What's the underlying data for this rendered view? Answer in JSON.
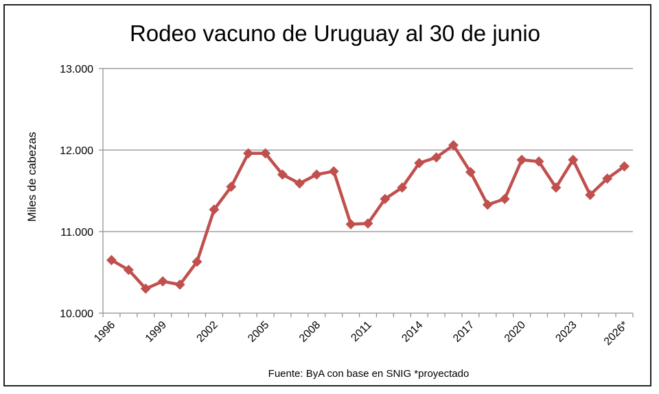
{
  "chart_data": {
    "type": "line",
    "title": "Rodeo vacuno de Uruguay al 30 de junio",
    "ylabel": "Miles de cabezas",
    "xlabel": "",
    "source": "Fuente: ByA con base en SNIG *proyectado",
    "ylim": [
      10000,
      13000
    ],
    "yticks": [
      "10.000",
      "11.000",
      "12.000",
      "13.000"
    ],
    "ytick_values": [
      10000,
      11000,
      12000,
      13000
    ],
    "xtick_labels": [
      "1996",
      "1999",
      "2002",
      "2005",
      "2008",
      "2011",
      "2014",
      "2017",
      "2020",
      "2023",
      "2026*"
    ],
    "x": [
      "1996",
      "1997",
      "1998",
      "1999",
      "2000",
      "2001",
      "2002",
      "2003",
      "2004",
      "2005",
      "2006",
      "2007",
      "2008",
      "2009",
      "2010",
      "2011",
      "2012",
      "2013",
      "2014",
      "2015",
      "2016",
      "2017",
      "2018",
      "2019",
      "2020",
      "2021",
      "2022",
      "2023",
      "2024",
      "2025",
      "2026*"
    ],
    "series": [
      {
        "values": [
          10650,
          10530,
          10300,
          10390,
          10350,
          10630,
          11270,
          11550,
          11960,
          11960,
          11700,
          11590,
          11700,
          11740,
          11090,
          11100,
          11400,
          11540,
          11840,
          11910,
          12060,
          11730,
          11330,
          11400,
          11880,
          11860,
          11540,
          11880,
          11450,
          11650,
          11800
        ],
        "color": "#c0504d"
      }
    ],
    "grid": "horizontal",
    "legend": "none"
  }
}
